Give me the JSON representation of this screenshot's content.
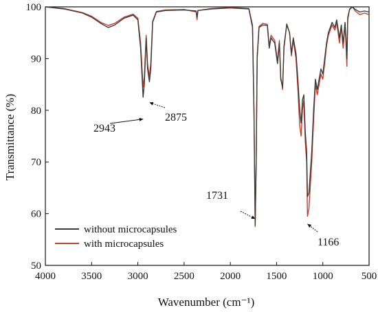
{
  "chart_data": {
    "type": "line",
    "xlabel": "Wavenumber (cm⁻¹)",
    "ylabel": "Transmittance (%)",
    "xlim": [
      4000,
      500
    ],
    "ylim": [
      50,
      100
    ],
    "x_reversed": true,
    "xticks": [
      4000,
      3500,
      3000,
      2500,
      2000,
      1500,
      1000,
      500
    ],
    "yticks": [
      50,
      60,
      70,
      80,
      90,
      100
    ],
    "legend_position": "bottom-left",
    "grid": false,
    "series": [
      {
        "name": "without microcapsules",
        "color": "#3a3a3a",
        "points": [
          [
            4000,
            100
          ],
          [
            3800,
            99.6
          ],
          [
            3600,
            98.8
          ],
          [
            3500,
            98
          ],
          [
            3400,
            96.8
          ],
          [
            3320,
            96
          ],
          [
            3250,
            96.5
          ],
          [
            3150,
            97.8
          ],
          [
            3050,
            98.4
          ],
          [
            3000,
            97.5
          ],
          [
            2970,
            92
          ],
          [
            2943,
            82.5
          ],
          [
            2930,
            85
          ],
          [
            2910,
            94
          ],
          [
            2895,
            88
          ],
          [
            2875,
            85.5
          ],
          [
            2860,
            88
          ],
          [
            2840,
            97
          ],
          [
            2800,
            99
          ],
          [
            2700,
            99.3
          ],
          [
            2500,
            99.4
          ],
          [
            2370,
            99.2
          ],
          [
            2360,
            98
          ],
          [
            2350,
            99.3
          ],
          [
            2200,
            99.6
          ],
          [
            2000,
            99.8
          ],
          [
            1800,
            99.6
          ],
          [
            1760,
            96
          ],
          [
            1745,
            80
          ],
          [
            1731,
            57.8
          ],
          [
            1720,
            70
          ],
          [
            1710,
            90
          ],
          [
            1690,
            96
          ],
          [
            1650,
            96.5
          ],
          [
            1600,
            96.4
          ],
          [
            1580,
            92
          ],
          [
            1560,
            94
          ],
          [
            1520,
            93
          ],
          [
            1490,
            89
          ],
          [
            1470,
            93
          ],
          [
            1455,
            86
          ],
          [
            1435,
            84.5
          ],
          [
            1420,
            92
          ],
          [
            1390,
            96.7
          ],
          [
            1360,
            95
          ],
          [
            1340,
            91
          ],
          [
            1320,
            94
          ],
          [
            1290,
            91
          ],
          [
            1270,
            86
          ],
          [
            1250,
            80
          ],
          [
            1235,
            77.5
          ],
          [
            1220,
            82
          ],
          [
            1205,
            83
          ],
          [
            1190,
            76
          ],
          [
            1175,
            72
          ],
          [
            1166,
            63.3
          ],
          [
            1150,
            64
          ],
          [
            1120,
            72
          ],
          [
            1100,
            80
          ],
          [
            1080,
            86
          ],
          [
            1060,
            84
          ],
          [
            1040,
            86
          ],
          [
            1020,
            88
          ],
          [
            1000,
            87
          ],
          [
            980,
            90
          ],
          [
            960,
            93
          ],
          [
            940,
            95
          ],
          [
            900,
            97
          ],
          [
            870,
            96
          ],
          [
            850,
            97.5
          ],
          [
            820,
            94
          ],
          [
            800,
            96.5
          ],
          [
            780,
            93
          ],
          [
            760,
            97
          ],
          [
            750,
            94
          ],
          [
            740,
            90
          ],
          [
            730,
            98
          ],
          [
            710,
            99.5
          ],
          [
            680,
            100
          ],
          [
            650,
            99.5
          ],
          [
            600,
            99
          ],
          [
            550,
            99.2
          ],
          [
            500,
            99
          ]
        ]
      },
      {
        "name": "with microcapsules",
        "color": "#c0402a",
        "points": [
          [
            4000,
            100
          ],
          [
            3800,
            99.7
          ],
          [
            3600,
            98.9
          ],
          [
            3500,
            98.2
          ],
          [
            3400,
            97
          ],
          [
            3320,
            96.4
          ],
          [
            3250,
            96.8
          ],
          [
            3150,
            98
          ],
          [
            3050,
            98.6
          ],
          [
            3000,
            97.8
          ],
          [
            2970,
            93
          ],
          [
            2943,
            84.5
          ],
          [
            2930,
            86.5
          ],
          [
            2910,
            94.5
          ],
          [
            2895,
            89
          ],
          [
            2875,
            86.5
          ],
          [
            2860,
            89
          ],
          [
            2840,
            97.2
          ],
          [
            2800,
            99.1
          ],
          [
            2700,
            99.4
          ],
          [
            2500,
            99.5
          ],
          [
            2370,
            99
          ],
          [
            2360,
            97.5
          ],
          [
            2350,
            99.3
          ],
          [
            2200,
            99.7
          ],
          [
            2000,
            99.9
          ],
          [
            1800,
            99.7
          ],
          [
            1760,
            96.5
          ],
          [
            1745,
            80.5
          ],
          [
            1731,
            57.5
          ],
          [
            1720,
            70.5
          ],
          [
            1710,
            90.5
          ],
          [
            1690,
            96.2
          ],
          [
            1650,
            96.8
          ],
          [
            1600,
            96.6
          ],
          [
            1580,
            92.5
          ],
          [
            1560,
            94.5
          ],
          [
            1520,
            93.5
          ],
          [
            1490,
            89.5
          ],
          [
            1470,
            93.5
          ],
          [
            1455,
            86.5
          ],
          [
            1435,
            84
          ],
          [
            1420,
            92.5
          ],
          [
            1390,
            96.5
          ],
          [
            1360,
            95
          ],
          [
            1340,
            90.5
          ],
          [
            1320,
            93.5
          ],
          [
            1290,
            90
          ],
          [
            1270,
            84
          ],
          [
            1250,
            77
          ],
          [
            1235,
            75
          ],
          [
            1220,
            80
          ],
          [
            1205,
            82
          ],
          [
            1190,
            74
          ],
          [
            1175,
            70
          ],
          [
            1166,
            59.5
          ],
          [
            1150,
            61
          ],
          [
            1120,
            70
          ],
          [
            1100,
            78
          ],
          [
            1080,
            85
          ],
          [
            1060,
            83
          ],
          [
            1040,
            85
          ],
          [
            1020,
            87
          ],
          [
            1000,
            86
          ],
          [
            980,
            89
          ],
          [
            960,
            92.5
          ],
          [
            940,
            94.5
          ],
          [
            900,
            96.5
          ],
          [
            870,
            95.5
          ],
          [
            850,
            97
          ],
          [
            820,
            93
          ],
          [
            800,
            96
          ],
          [
            780,
            92
          ],
          [
            760,
            96.5
          ],
          [
            750,
            93
          ],
          [
            740,
            88.5
          ],
          [
            730,
            97.5
          ],
          [
            710,
            99.6
          ],
          [
            680,
            100
          ],
          [
            650,
            99.2
          ],
          [
            600,
            98.5
          ],
          [
            550,
            98.8
          ],
          [
            500,
            98.5
          ]
        ]
      }
    ],
    "annotations": [
      {
        "text": "2943",
        "x": 2943,
        "y": 82.5
      },
      {
        "text": "2875",
        "x": 2875,
        "y": 85.5
      },
      {
        "text": "1731",
        "x": 1731,
        "y": 57.8
      },
      {
        "text": "1166",
        "x": 1166,
        "y": 59.5
      }
    ]
  }
}
